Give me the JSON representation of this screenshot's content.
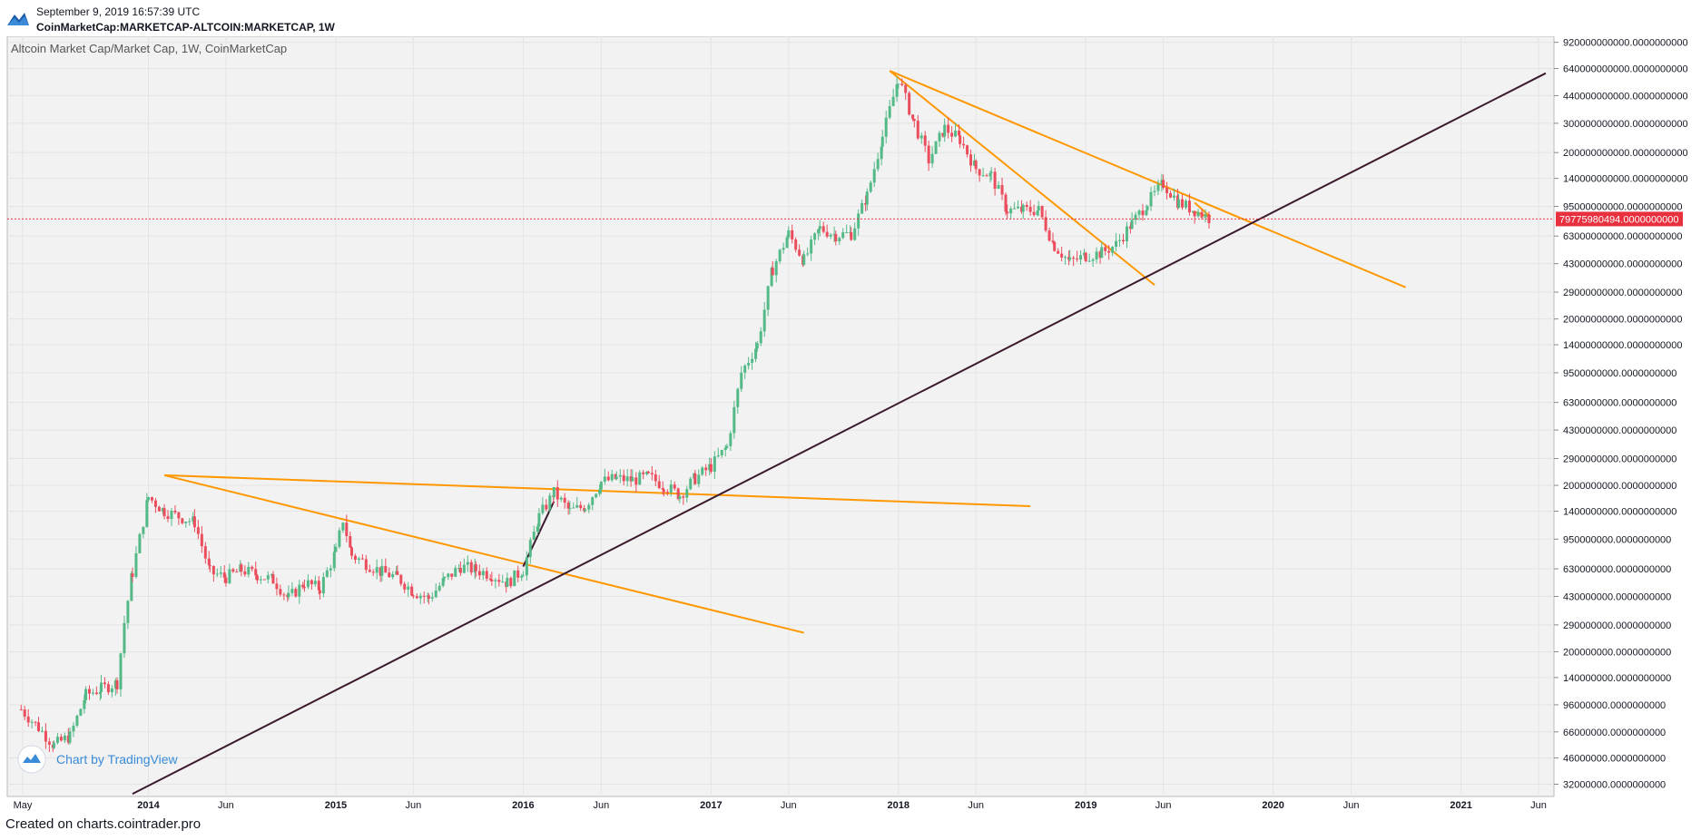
{
  "header": {
    "date": "September 9, 2019 16:57:39 UTC",
    "symbol": "CoinMarketCap:MARKETCAP-ALTCOIN:MARKETCAP, 1W"
  },
  "footer": {
    "text": "Created on charts.cointrader.pro"
  },
  "watermark": {
    "text": "Chart by TradingView"
  },
  "colors": {
    "up": "#53b987",
    "down": "#eb4d5c",
    "trendline_orange": "#ff9800",
    "trendline_dark": "#3c1a2e",
    "price_line": "#e8303f",
    "background": "#f2f2f2",
    "grid": "#e4e4e4"
  },
  "chart_data": {
    "type": "candlestick",
    "title": "Altcoin Market Cap/Market Cap, 1W, CoinMarketCap",
    "scale": "log",
    "y_tick_labels": [
      "920000000000.0000000000",
      "640000000000.0000000000",
      "440000000000.0000000000",
      "300000000000.0000000000",
      "200000000000.0000000000",
      "140000000000.0000000000",
      "95000000000.0000000000",
      "63000000000.0000000000",
      "43000000000.0000000000",
      "29000000000.0000000000",
      "20000000000.0000000000",
      "14000000000.0000000000",
      "9500000000.0000000000",
      "6300000000.0000000000",
      "4300000000.0000000000",
      "2900000000.0000000000",
      "2000000000.0000000000",
      "1400000000.0000000000",
      "950000000.0000000000",
      "630000000.0000000000",
      "430000000.0000000000",
      "290000000.0000000000",
      "200000000.0000000000",
      "140000000.0000000000",
      "96000000.0000000000",
      "66000000.0000000000",
      "46000000.0000000000",
      "32000000.0000000000"
    ],
    "x_tick_labels": [
      "May",
      "2014",
      "Jun",
      "2015",
      "Jun",
      "2016",
      "Jun",
      "2017",
      "Jun",
      "2018",
      "Jun",
      "2019",
      "Jun",
      "2020",
      "Jun",
      "2021",
      "Jun"
    ],
    "x_tick_dates": [
      "2013-05-01",
      "2014-01-01",
      "2014-06-01",
      "2015-01-01",
      "2015-06-01",
      "2016-01-01",
      "2016-06-01",
      "2017-01-01",
      "2017-06-01",
      "2018-01-01",
      "2018-06-01",
      "2019-01-01",
      "2019-06-01",
      "2020-01-01",
      "2020-06-01",
      "2021-01-01",
      "2021-06-01"
    ],
    "last_price_label": "79775980494.0000000000",
    "last_price": 79775980494,
    "x_range": [
      "2013-04-01",
      "2021-07-01"
    ],
    "y_range": [
      27000000,
      1000000000000
    ],
    "candles_weekly_close_approx": [
      [
        "2013-04-28",
        90000000
      ],
      [
        "2013-06-01",
        70000000
      ],
      [
        "2013-07-01",
        55000000
      ],
      [
        "2013-08-01",
        62000000
      ],
      [
        "2013-09-01",
        110000000
      ],
      [
        "2013-10-01",
        120000000
      ],
      [
        "2013-11-01",
        130000000
      ],
      [
        "2013-11-15",
        300000000
      ],
      [
        "2013-12-01",
        600000000
      ],
      [
        "2014-01-01",
        1700000000
      ],
      [
        "2014-02-01",
        1400000000
      ],
      [
        "2014-03-01",
        1300000000
      ],
      [
        "2014-04-01",
        1200000000
      ],
      [
        "2014-05-01",
        600000000
      ],
      [
        "2014-06-01",
        560000000
      ],
      [
        "2014-07-01",
        620000000
      ],
      [
        "2014-08-01",
        580000000
      ],
      [
        "2014-09-01",
        540000000
      ],
      [
        "2014-10-01",
        420000000
      ],
      [
        "2014-11-01",
        520000000
      ],
      [
        "2014-12-01",
        480000000
      ],
      [
        "2015-01-01",
        800000000
      ],
      [
        "2015-01-15",
        1250000000
      ],
      [
        "2015-02-01",
        760000000
      ],
      [
        "2015-03-01",
        680000000
      ],
      [
        "2015-04-01",
        600000000
      ],
      [
        "2015-05-01",
        560000000
      ],
      [
        "2015-06-01",
        460000000
      ],
      [
        "2015-07-01",
        420000000
      ],
      [
        "2015-08-01",
        540000000
      ],
      [
        "2015-09-01",
        650000000
      ],
      [
        "2015-10-01",
        620000000
      ],
      [
        "2015-11-01",
        580000000
      ],
      [
        "2015-12-01",
        520000000
      ],
      [
        "2016-01-01",
        620000000
      ],
      [
        "2016-02-01",
        1300000000
      ],
      [
        "2016-03-01",
        1800000000
      ],
      [
        "2016-04-01",
        1400000000
      ],
      [
        "2016-05-01",
        1500000000
      ],
      [
        "2016-06-01",
        2100000000
      ],
      [
        "2016-07-01",
        2200000000
      ],
      [
        "2016-08-01",
        2150000000
      ],
      [
        "2016-09-01",
        2250000000
      ],
      [
        "2016-10-01",
        2000000000
      ],
      [
        "2016-11-01",
        1750000000
      ],
      [
        "2016-12-01",
        2200000000
      ],
      [
        "2017-01-01",
        2600000000
      ],
      [
        "2017-02-01",
        3400000000
      ],
      [
        "2017-03-01",
        9500000000
      ],
      [
        "2017-04-01",
        14000000000
      ],
      [
        "2017-05-01",
        40000000000
      ],
      [
        "2017-06-01",
        65000000000
      ],
      [
        "2017-07-01",
        45000000000
      ],
      [
        "2017-08-01",
        70000000000
      ],
      [
        "2017-09-01",
        64000000000
      ],
      [
        "2017-10-01",
        65000000000
      ],
      [
        "2017-11-01",
        110000000000
      ],
      [
        "2017-12-01",
        250000000000
      ],
      [
        "2018-01-01",
        560000000000
      ],
      [
        "2018-01-15",
        420000000000
      ],
      [
        "2018-02-01",
        300000000000
      ],
      [
        "2018-03-01",
        180000000000
      ],
      [
        "2018-04-01",
        280000000000
      ],
      [
        "2018-05-01",
        240000000000
      ],
      [
        "2018-06-01",
        160000000000
      ],
      [
        "2018-07-01",
        145000000000
      ],
      [
        "2018-08-01",
        90000000000
      ],
      [
        "2018-09-01",
        90000000000
      ],
      [
        "2018-10-01",
        90000000000
      ],
      [
        "2018-11-01",
        55000000000
      ],
      [
        "2018-12-01",
        44000000000
      ],
      [
        "2019-01-01",
        48000000000
      ],
      [
        "2019-02-01",
        50000000000
      ],
      [
        "2019-03-01",
        56000000000
      ],
      [
        "2019-04-01",
        75000000000
      ],
      [
        "2019-05-01",
        100000000000
      ],
      [
        "2019-06-01",
        130000000000
      ],
      [
        "2019-07-01",
        100000000000
      ],
      [
        "2019-08-01",
        90000000000
      ],
      [
        "2019-09-01",
        79775980494
      ]
    ],
    "drawings": [
      {
        "color": "orange",
        "from": [
          "2014-02-01",
          2300000000
        ],
        "to": [
          "2018-09-15",
          1500000000
        ]
      },
      {
        "color": "orange",
        "from": [
          "2014-02-01",
          2300000000
        ],
        "to": [
          "2017-07-01",
          260000000
        ]
      },
      {
        "color": "orange",
        "from": [
          "2017-12-15",
          620000000000
        ],
        "to": [
          "2020-09-15",
          31000000000
        ]
      },
      {
        "color": "orange",
        "from": [
          "2017-12-15",
          620000000000
        ],
        "to": [
          "2019-05-15",
          32000000000
        ]
      },
      {
        "color": "orange",
        "from": [
          "2019-08-01",
          88000000000
        ],
        "to": [
          "2019-09-01",
          82000000000
        ]
      },
      {
        "color": "orange",
        "from": [
          "2019-08-01",
          100000000000
        ],
        "to": [
          "2019-09-01",
          82000000000
        ]
      },
      {
        "color": "dark",
        "from": [
          "2013-12-01",
          28000000
        ],
        "to": [
          "2021-06-15",
          600000000000
        ]
      },
      {
        "color": "dark",
        "from": [
          "2016-01-01",
          650000000
        ],
        "to": [
          "2016-03-01",
          1600000000
        ]
      }
    ]
  }
}
